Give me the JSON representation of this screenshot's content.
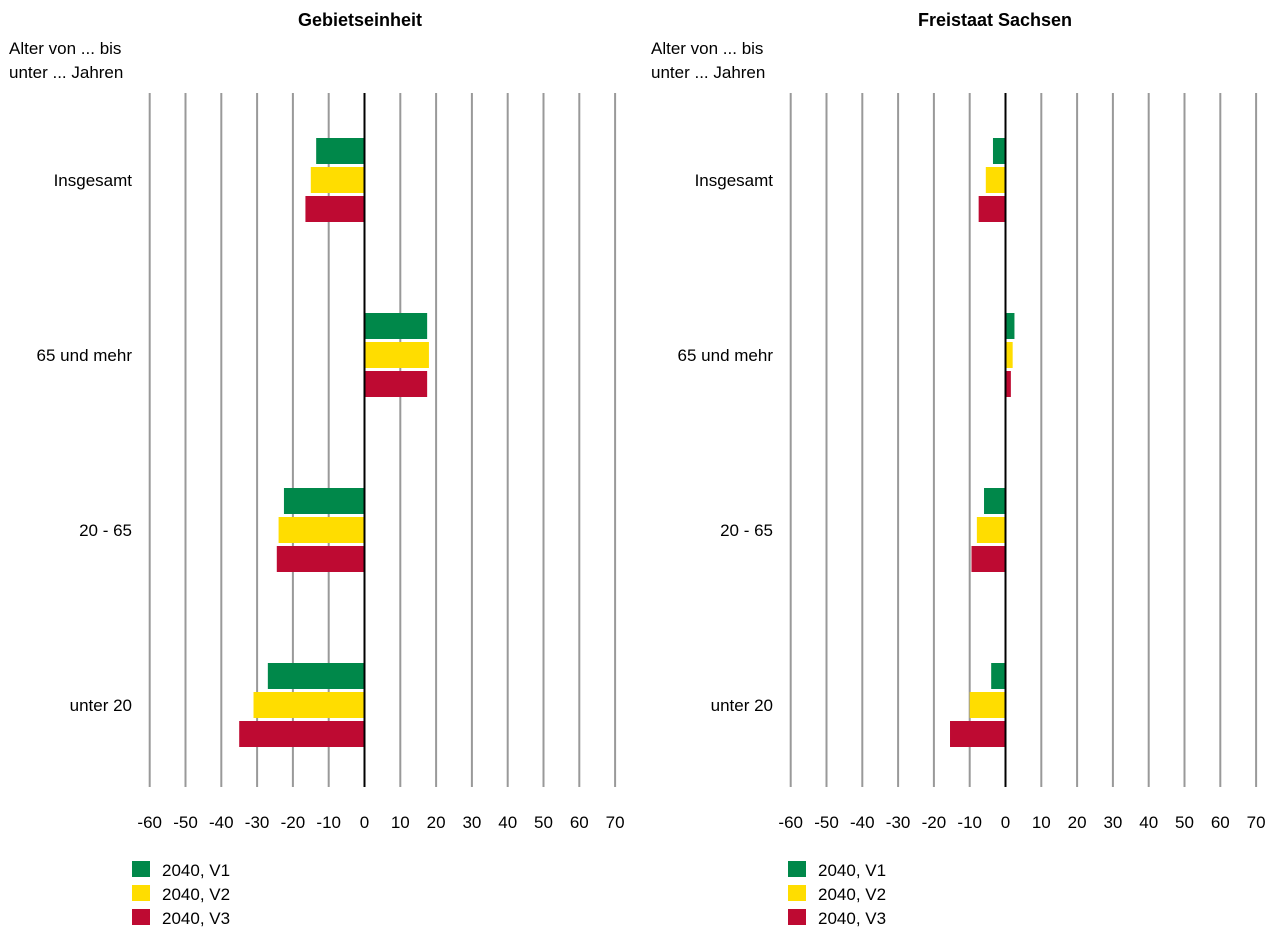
{
  "chart_data": [
    {
      "type": "bar",
      "orientation": "horizontal",
      "title": "Gebietseinheit",
      "ylabel": "Alter von ... bis unter ... Jahren",
      "ylabel_lines": [
        "Alter von ... bis",
        "unter ... Jahren"
      ],
      "xlabel": "",
      "categories": [
        "Insgesamt",
        "65 und mehr",
        "20 - 65",
        "unter 20"
      ],
      "series": [
        {
          "name": "2040, V1",
          "values": [
            -13.5,
            17.5,
            -22.5,
            -27.0
          ]
        },
        {
          "name": "2040, V2",
          "values": [
            -15.0,
            18.0,
            -24.0,
            -31.0
          ]
        },
        {
          "name": "2040, V3",
          "values": [
            -16.5,
            17.5,
            -24.5,
            -35.0
          ]
        }
      ],
      "xlim": [
        -60,
        70
      ],
      "xticks": [
        "-60",
        "-50",
        "-40",
        "-30",
        "-20",
        "-10",
        "0",
        "10",
        "20",
        "30",
        "40",
        "50",
        "60",
        "70"
      ],
      "grid": true,
      "legend_position": "bottom-left"
    },
    {
      "type": "bar",
      "orientation": "horizontal",
      "title": "Freistaat Sachsen",
      "ylabel": "Alter von ... bis unter ... Jahren",
      "ylabel_lines": [
        "Alter von ... bis",
        "unter ... Jahren"
      ],
      "xlabel": "",
      "categories": [
        "Insgesamt",
        "65 und mehr",
        "20 - 65",
        "unter 20"
      ],
      "series": [
        {
          "name": "2040, V1",
          "values": [
            -3.5,
            2.5,
            -6.0,
            -4.0
          ]
        },
        {
          "name": "2040, V2",
          "values": [
            -5.5,
            2.0,
            -8.0,
            -10.0
          ]
        },
        {
          "name": "2040, V3",
          "values": [
            -7.5,
            1.5,
            -9.5,
            -15.5
          ]
        }
      ],
      "xlim": [
        -60,
        70
      ],
      "xticks": [
        "-60",
        "-50",
        "-40",
        "-30",
        "-20",
        "-10",
        "0",
        "10",
        "20",
        "30",
        "40",
        "50",
        "60",
        "70"
      ],
      "grid": true,
      "legend_position": "bottom-left"
    }
  ],
  "colors": {
    "series": [
      "#00884a",
      "#ffdd00",
      "#be0a32"
    ],
    "grid": "#999999",
    "zero_line": "#000000"
  }
}
